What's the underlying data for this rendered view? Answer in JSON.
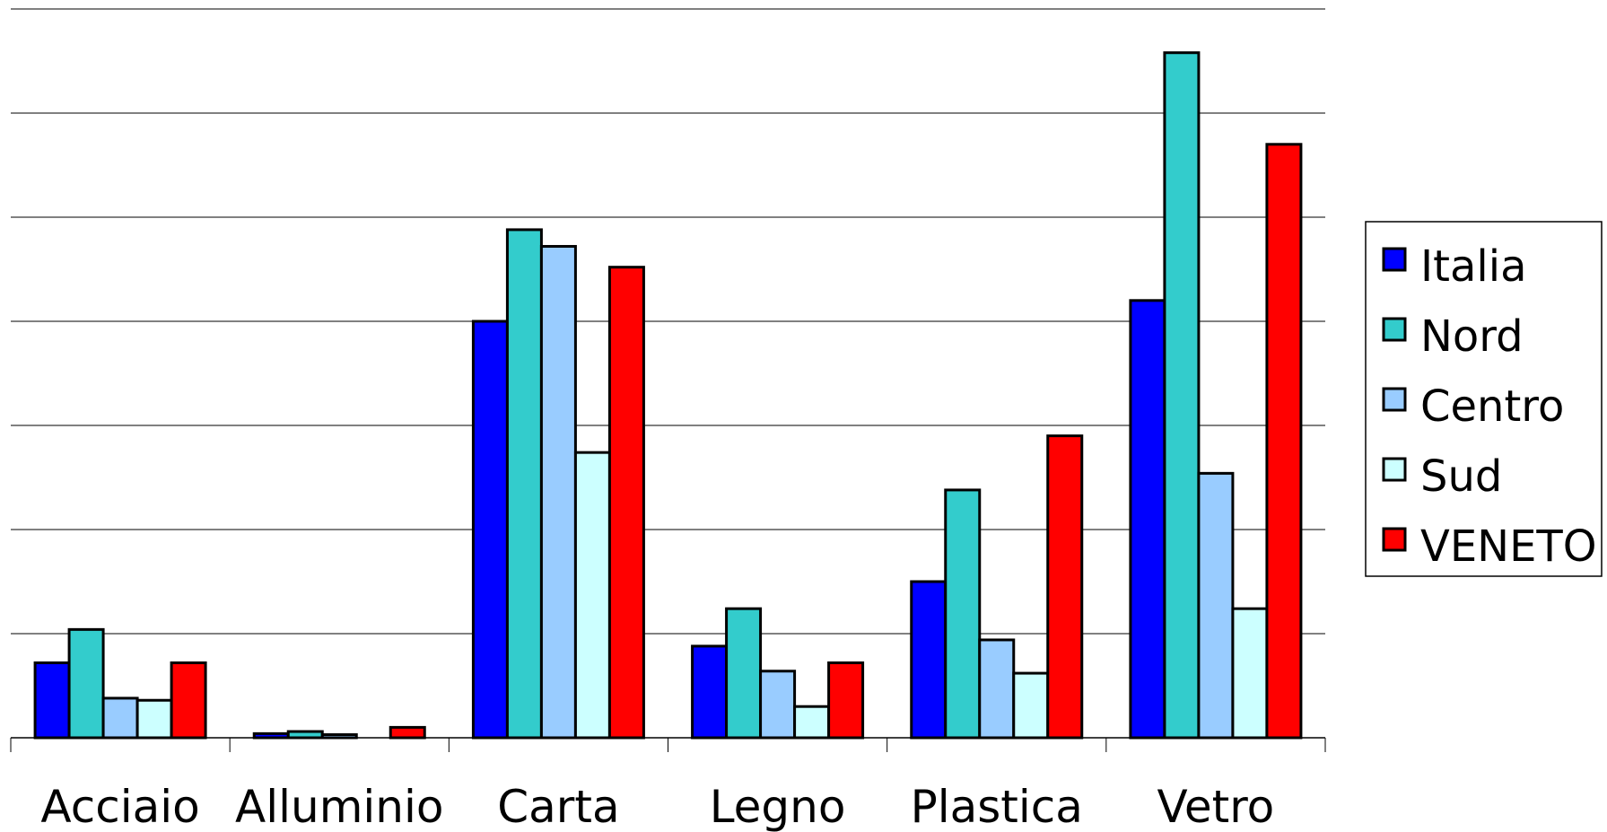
{
  "chart_data": {
    "type": "bar",
    "categories": [
      "Acciaio",
      "Alluminio",
      "Carta",
      "Legno",
      "Plastica",
      "Vetro"
    ],
    "series": [
      {
        "name": "Italia",
        "color": "#0000FF",
        "values": [
          3.6,
          0.2,
          20.0,
          4.4,
          7.5,
          21.0
        ]
      },
      {
        "name": "Nord",
        "color": "#33CCCC",
        "values": [
          5.2,
          0.3,
          24.4,
          6.2,
          11.9,
          32.9
        ]
      },
      {
        "name": "Centro",
        "color": "#99CCFF",
        "values": [
          1.9,
          0.15,
          23.6,
          3.2,
          4.7,
          12.7
        ]
      },
      {
        "name": "Sud",
        "color": "#CCFFFF",
        "values": [
          1.8,
          0.0,
          13.7,
          1.5,
          3.1,
          6.2
        ]
      },
      {
        "name": "VENETO",
        "color": "#FF0000",
        "values": [
          3.6,
          0.5,
          22.6,
          3.6,
          14.5,
          28.5
        ]
      }
    ],
    "ylim": [
      0,
      35
    ],
    "gridlines": true,
    "legend_position": "right",
    "title": "",
    "xlabel": "",
    "ylabel": ""
  }
}
